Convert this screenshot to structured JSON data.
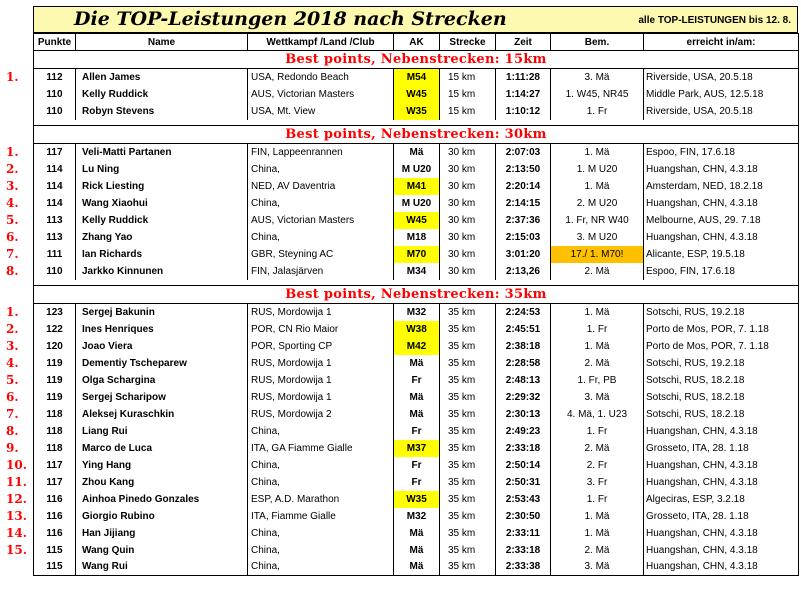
{
  "title": "Die TOP-Leistungen 2018 nach Strecken",
  "title_note": "alle TOP-LEISTUNGEN bis 12. 8.",
  "headers": [
    "Punkte",
    "Name",
    "Wettkampf /Land /Club",
    "AK",
    "Strecke",
    "Zeit",
    "Bem.",
    "erreicht in/am:"
  ],
  "sections": [
    {
      "heading": "Best points, Nebenstrecken:   15km",
      "rows": [
        {
          "rank": "1.",
          "pts": "112",
          "name": "Allen James",
          "comp": "USA, Redondo Beach",
          "ak": "M54",
          "ak_hl": true,
          "dist": "15 km",
          "time": "1:11:28",
          "bem": "3. Mä",
          "bem_hl": false,
          "reached": "Riverside, USA, 20.5.18"
        },
        {
          "rank": "",
          "pts": "110",
          "name": "Kelly Ruddick",
          "comp": "AUS, Victorian Masters",
          "ak": "W45",
          "ak_hl": true,
          "dist": "15 km",
          "time": "1:14:27",
          "bem": "1. W45, NR45",
          "bem_hl": false,
          "reached": "Middle Park, AUS, 12.5.18"
        },
        {
          "rank": "",
          "pts": "110",
          "name": "Robyn Stevens",
          "comp": "USA, Mt. View",
          "ak": "W35",
          "ak_hl": true,
          "dist": "15 km",
          "time": "1:10:12",
          "bem": "1. Fr",
          "bem_hl": false,
          "reached": "Riverside, USA, 20.5.18"
        }
      ]
    },
    {
      "heading": "Best points, Nebenstrecken:    30km",
      "rows": [
        {
          "rank": "1.",
          "pts": "117",
          "name": "Veli-Matti Partanen",
          "comp": "FIN, Lappeenrannen",
          "ak": "Mä",
          "ak_hl": false,
          "dist": "30 km",
          "time": "2:07:03",
          "bem": "1. Mä",
          "bem_hl": false,
          "reached": "Espoo, FIN, 17.6.18"
        },
        {
          "rank": "2.",
          "pts": "114",
          "name": "Lu Ning",
          "comp": "China,",
          "ak": "M U20",
          "ak_hl": false,
          "dist": "30 km",
          "time": "2:13:50",
          "bem": "1. M U20",
          "bem_hl": false,
          "reached": "Huangshan, CHN, 4.3.18"
        },
        {
          "rank": "3.",
          "pts": "114",
          "name": "Rick Liesting",
          "comp": "NED, AV Daventria",
          "ak": "M41",
          "ak_hl": true,
          "dist": "30 km",
          "time": "2:20:14",
          "bem": "1. Mä",
          "bem_hl": false,
          "reached": "Amsterdam, NED, 18.2.18"
        },
        {
          "rank": "4.",
          "pts": "114",
          "name": "Wang Xiaohui",
          "comp": "China,",
          "ak": "M U20",
          "ak_hl": false,
          "dist": "30 km",
          "time": "2:14:15",
          "bem": "2. M U20",
          "bem_hl": false,
          "reached": "Huangshan, CHN, 4.3.18"
        },
        {
          "rank": "5.",
          "pts": "113",
          "name": "Kelly Ruddick",
          "comp": "AUS, Victorian Masters",
          "ak": "W45",
          "ak_hl": true,
          "dist": "30 km",
          "time": "2:37:36",
          "bem": "1. Fr, NR W40",
          "bem_hl": false,
          "reached": "Melbourne, AUS, 29. 7.18"
        },
        {
          "rank": "6.",
          "pts": "113",
          "name": "Zhang Yao",
          "comp": "China,",
          "ak": "M18",
          "ak_hl": false,
          "dist": "30 km",
          "time": "2:15:03",
          "bem": "3. M U20",
          "bem_hl": false,
          "reached": "Huangshan, CHN, 4.3.18"
        },
        {
          "rank": "7.",
          "pts": "111",
          "name": "Ian Richards",
          "comp": "GBR, Steyning AC",
          "ak": "M70",
          "ak_hl": true,
          "dist": "30 km",
          "time": "3:01:20",
          "bem": "17./ 1. M70!",
          "bem_hl": true,
          "reached": "Alicante, ESP, 19.5.18"
        },
        {
          "rank": "8.",
          "pts": "110",
          "name": "Jarkko Kinnunen",
          "comp": "FIN, Jalasjärven",
          "ak": "M34",
          "ak_hl": false,
          "dist": "30 km",
          "time": "2:13,26",
          "bem": "2. Mä",
          "bem_hl": false,
          "reached": "Espoo, FIN, 17.6.18"
        }
      ]
    },
    {
      "heading": "Best points, Nebenstrecken:   35km",
      "rows": [
        {
          "rank": "1.",
          "pts": "123",
          "name": "Sergej Bakunin",
          "comp": "RUS, Mordowija 1",
          "ak": "M32",
          "ak_hl": false,
          "dist": "35 km",
          "time": "2:24:53",
          "bem": "1. Mä",
          "bem_hl": false,
          "reached": "Sotschi, RUS, 19.2.18"
        },
        {
          "rank": "2.",
          "pts": "122",
          "name": "Ines Henriques",
          "comp": "POR, CN Rio Maior",
          "ak": "W38",
          "ak_hl": true,
          "dist": "35 km",
          "time": "2:45:51",
          "bem": "1. Fr",
          "bem_hl": false,
          "reached": "Porto de Mos, POR, 7. 1.18"
        },
        {
          "rank": "3.",
          "pts": "120",
          "name": "Joao Viera",
          "comp": "POR, Sporting CP",
          "ak": "M42",
          "ak_hl": true,
          "dist": "35 km",
          "time": "2:38:18",
          "bem": "1. Mä",
          "bem_hl": false,
          "reached": "Porto de Mos, POR, 7. 1.18"
        },
        {
          "rank": "4.",
          "pts": "119",
          "name": "Dementiy Tscheparew",
          "comp": "RUS, Mordowija 1",
          "ak": "Mä",
          "ak_hl": false,
          "dist": "35 km",
          "time": "2:28:58",
          "bem": "2. Mä",
          "bem_hl": false,
          "reached": "Sotschi, RUS, 19.2.18"
        },
        {
          "rank": "5.",
          "pts": "119",
          "name": "Olga Schargina",
          "comp": "RUS, Mordowija 1",
          "ak": "Fr",
          "ak_hl": false,
          "dist": "35 km",
          "time": "2:48:13",
          "bem": "1. Fr, PB",
          "bem_hl": false,
          "reached": "Sotschi, RUS, 18.2.18"
        },
        {
          "rank": "6.",
          "pts": "119",
          "name": "Sergej Scharipow",
          "comp": "RUS, Mordowija 1",
          "ak": "Mä",
          "ak_hl": false,
          "dist": "35 km",
          "time": "2:29:32",
          "bem": "3. Mä",
          "bem_hl": false,
          "reached": "Sotschi, RUS, 18.2.18"
        },
        {
          "rank": "7.",
          "pts": "118",
          "name": "Aleksej Kuraschkin",
          "comp": "RUS, Mordowija 2",
          "ak": "Mä",
          "ak_hl": false,
          "dist": "35 km",
          "time": "2:30:13",
          "bem": "4. Mä, 1. U23",
          "bem_hl": false,
          "reached": "Sotschi, RUS, 18.2.18"
        },
        {
          "rank": "8.",
          "pts": "118",
          "name": "Liang Rui",
          "comp": "China,",
          "ak": "Fr",
          "ak_hl": false,
          "dist": "35 km",
          "time": "2:49:23",
          "bem": "1. Fr",
          "bem_hl": false,
          "reached": "Huangshan, CHN, 4.3.18"
        },
        {
          "rank": "9.",
          "pts": "118",
          "name": "Marco de Luca",
          "comp": "ITA, GA Fiamme Gialle",
          "ak": "M37",
          "ak_hl": true,
          "dist": "35 km",
          "time": "2:33:18",
          "bem": "2. Mä",
          "bem_hl": false,
          "reached": "Grosseto, ITA, 28. 1.18"
        },
        {
          "rank": "10.",
          "pts": "117",
          "name": "Ying Hang",
          "comp": "China,",
          "ak": "Fr",
          "ak_hl": false,
          "dist": "35 km",
          "time": "2:50:14",
          "bem": "2. Fr",
          "bem_hl": false,
          "reached": "Huangshan, CHN, 4.3.18"
        },
        {
          "rank": "11.",
          "pts": "117",
          "name": "Zhou Kang",
          "comp": "China,",
          "ak": "Fr",
          "ak_hl": false,
          "dist": "35 km",
          "time": "2:50:31",
          "bem": "3. Fr",
          "bem_hl": false,
          "reached": "Huangshan, CHN, 4.3.18"
        },
        {
          "rank": "12.",
          "pts": "116",
          "name": "Ainhoa Pinedo Gonzales",
          "comp": "ESP, A.D. Marathon",
          "ak": "W35",
          "ak_hl": true,
          "dist": "35 km",
          "time": "2:53:43",
          "bem": "1. Fr",
          "bem_hl": false,
          "reached": "Algeciras, ESP, 3.2.18"
        },
        {
          "rank": "13.",
          "pts": "116",
          "name": "Giorgio Rubino",
          "comp": "ITA, Fiamme Gialle",
          "ak": "M32",
          "ak_hl": false,
          "dist": "35 km",
          "time": "2:30:50",
          "bem": "1. Mä",
          "bem_hl": false,
          "reached": "Grosseto, ITA, 28. 1.18"
        },
        {
          "rank": "14.",
          "pts": "116",
          "name": "Han Jijiang",
          "comp": "China,",
          "ak": "Mä",
          "ak_hl": false,
          "dist": "35 km",
          "time": "2:33:11",
          "bem": "1. Mä",
          "bem_hl": false,
          "reached": "Huangshan, CHN, 4.3.18"
        },
        {
          "rank": "15.",
          "pts": "115",
          "name": "Wang Quin",
          "comp": "China,",
          "ak": "Mä",
          "ak_hl": false,
          "dist": "35 km",
          "time": "2:33:18",
          "bem": "2. Mä",
          "bem_hl": false,
          "reached": "Huangshan, CHN, 4.3.18"
        },
        {
          "rank": "",
          "pts": "115",
          "name": "Wang Rui",
          "comp": "China,",
          "ak": "Mä",
          "ak_hl": false,
          "dist": "35 km",
          "time": "2:33:38",
          "bem": "3. Mä",
          "bem_hl": false,
          "reached": "Huangshan, CHN, 4.3.18"
        }
      ]
    }
  ]
}
